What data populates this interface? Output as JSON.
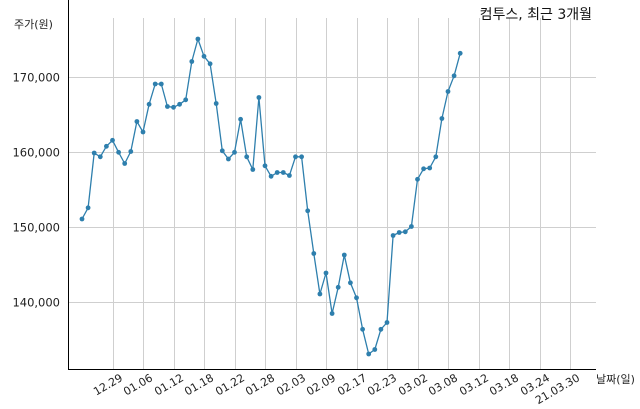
{
  "chart_data": {
    "type": "line",
    "title": "컴투스, 최근 3개월",
    "ylabel": "주가(원)",
    "xlabel": "날짜(일)",
    "ylim": [
      131000,
      180000
    ],
    "yticks": [
      140000,
      150000,
      160000,
      170000
    ],
    "ytick_labels": [
      "140,000",
      "150,000",
      "160,000",
      "170,000"
    ],
    "xtick_labels": [
      "12.29",
      "01.06",
      "01.12",
      "01.18",
      "01.22",
      "01.28",
      "02.03",
      "02.09",
      "02.17",
      "02.23",
      "03.02",
      "03.08",
      "03.12",
      "03.18",
      "03.24",
      "21.03.30"
    ],
    "xtick_index": [
      5,
      10,
      15,
      20,
      25,
      30,
      35,
      40,
      45,
      50,
      55,
      60,
      65,
      70,
      75,
      80
    ],
    "grid": true,
    "color": "#2e7fad",
    "series": [
      {
        "values": [
          151000,
          152500,
          159800,
          159300,
          160700,
          161500,
          159900,
          158400,
          160000,
          164000,
          162600,
          166300,
          169000,
          169000,
          166000,
          165900,
          166300,
          166900,
          172000,
          175000,
          172700,
          171700,
          166400,
          160100,
          159000,
          159900,
          164300,
          159300,
          157600,
          167200,
          158100,
          156700,
          157200,
          157200,
          156800,
          159300,
          159300,
          152100,
          146400,
          141000,
          143800,
          138400,
          141900,
          146200,
          142500,
          140500,
          136300,
          133000,
          133600,
          136300,
          137200,
          148800,
          149200,
          149300,
          150000,
          156300,
          157700,
          157800,
          159300,
          164400,
          168000,
          170100,
          173100
        ]
      }
    ]
  }
}
